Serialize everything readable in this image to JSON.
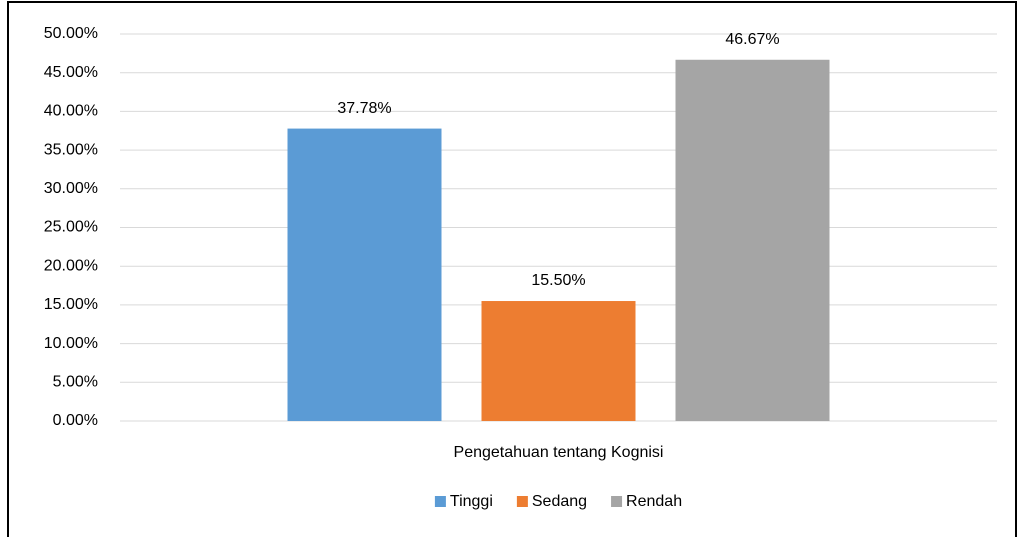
{
  "chart_data": {
    "type": "bar",
    "categories": [
      "Pengetahuan tentang Kognisi"
    ],
    "series": [
      {
        "name": "Tinggi",
        "color": "#5b9bd5",
        "values": [
          37.78
        ],
        "value_labels": [
          "37.78%"
        ]
      },
      {
        "name": "Sedang",
        "color": "#ed7d31",
        "values": [
          15.5
        ],
        "value_labels": [
          "15.50%"
        ]
      },
      {
        "name": "Rendah",
        "color": "#a5a5a5",
        "values": [
          46.67
        ],
        "value_labels": [
          "46.67%"
        ]
      }
    ],
    "ylim": [
      0,
      50
    ],
    "yticks": [
      {
        "value": 0,
        "label": "0.00%"
      },
      {
        "value": 5,
        "label": "5.00%"
      },
      {
        "value": 10,
        "label": "10.00%"
      },
      {
        "value": 15,
        "label": "15.00%"
      },
      {
        "value": 20,
        "label": "20.00%"
      },
      {
        "value": 25,
        "label": "25.00%"
      },
      {
        "value": 30,
        "label": "30.00%"
      },
      {
        "value": 35,
        "label": "35.00%"
      },
      {
        "value": 40,
        "label": "40.00%"
      },
      {
        "value": 45,
        "label": "45.00%"
      },
      {
        "value": 50,
        "label": "50.00%"
      }
    ],
    "grid": true,
    "legend": "bottom"
  }
}
